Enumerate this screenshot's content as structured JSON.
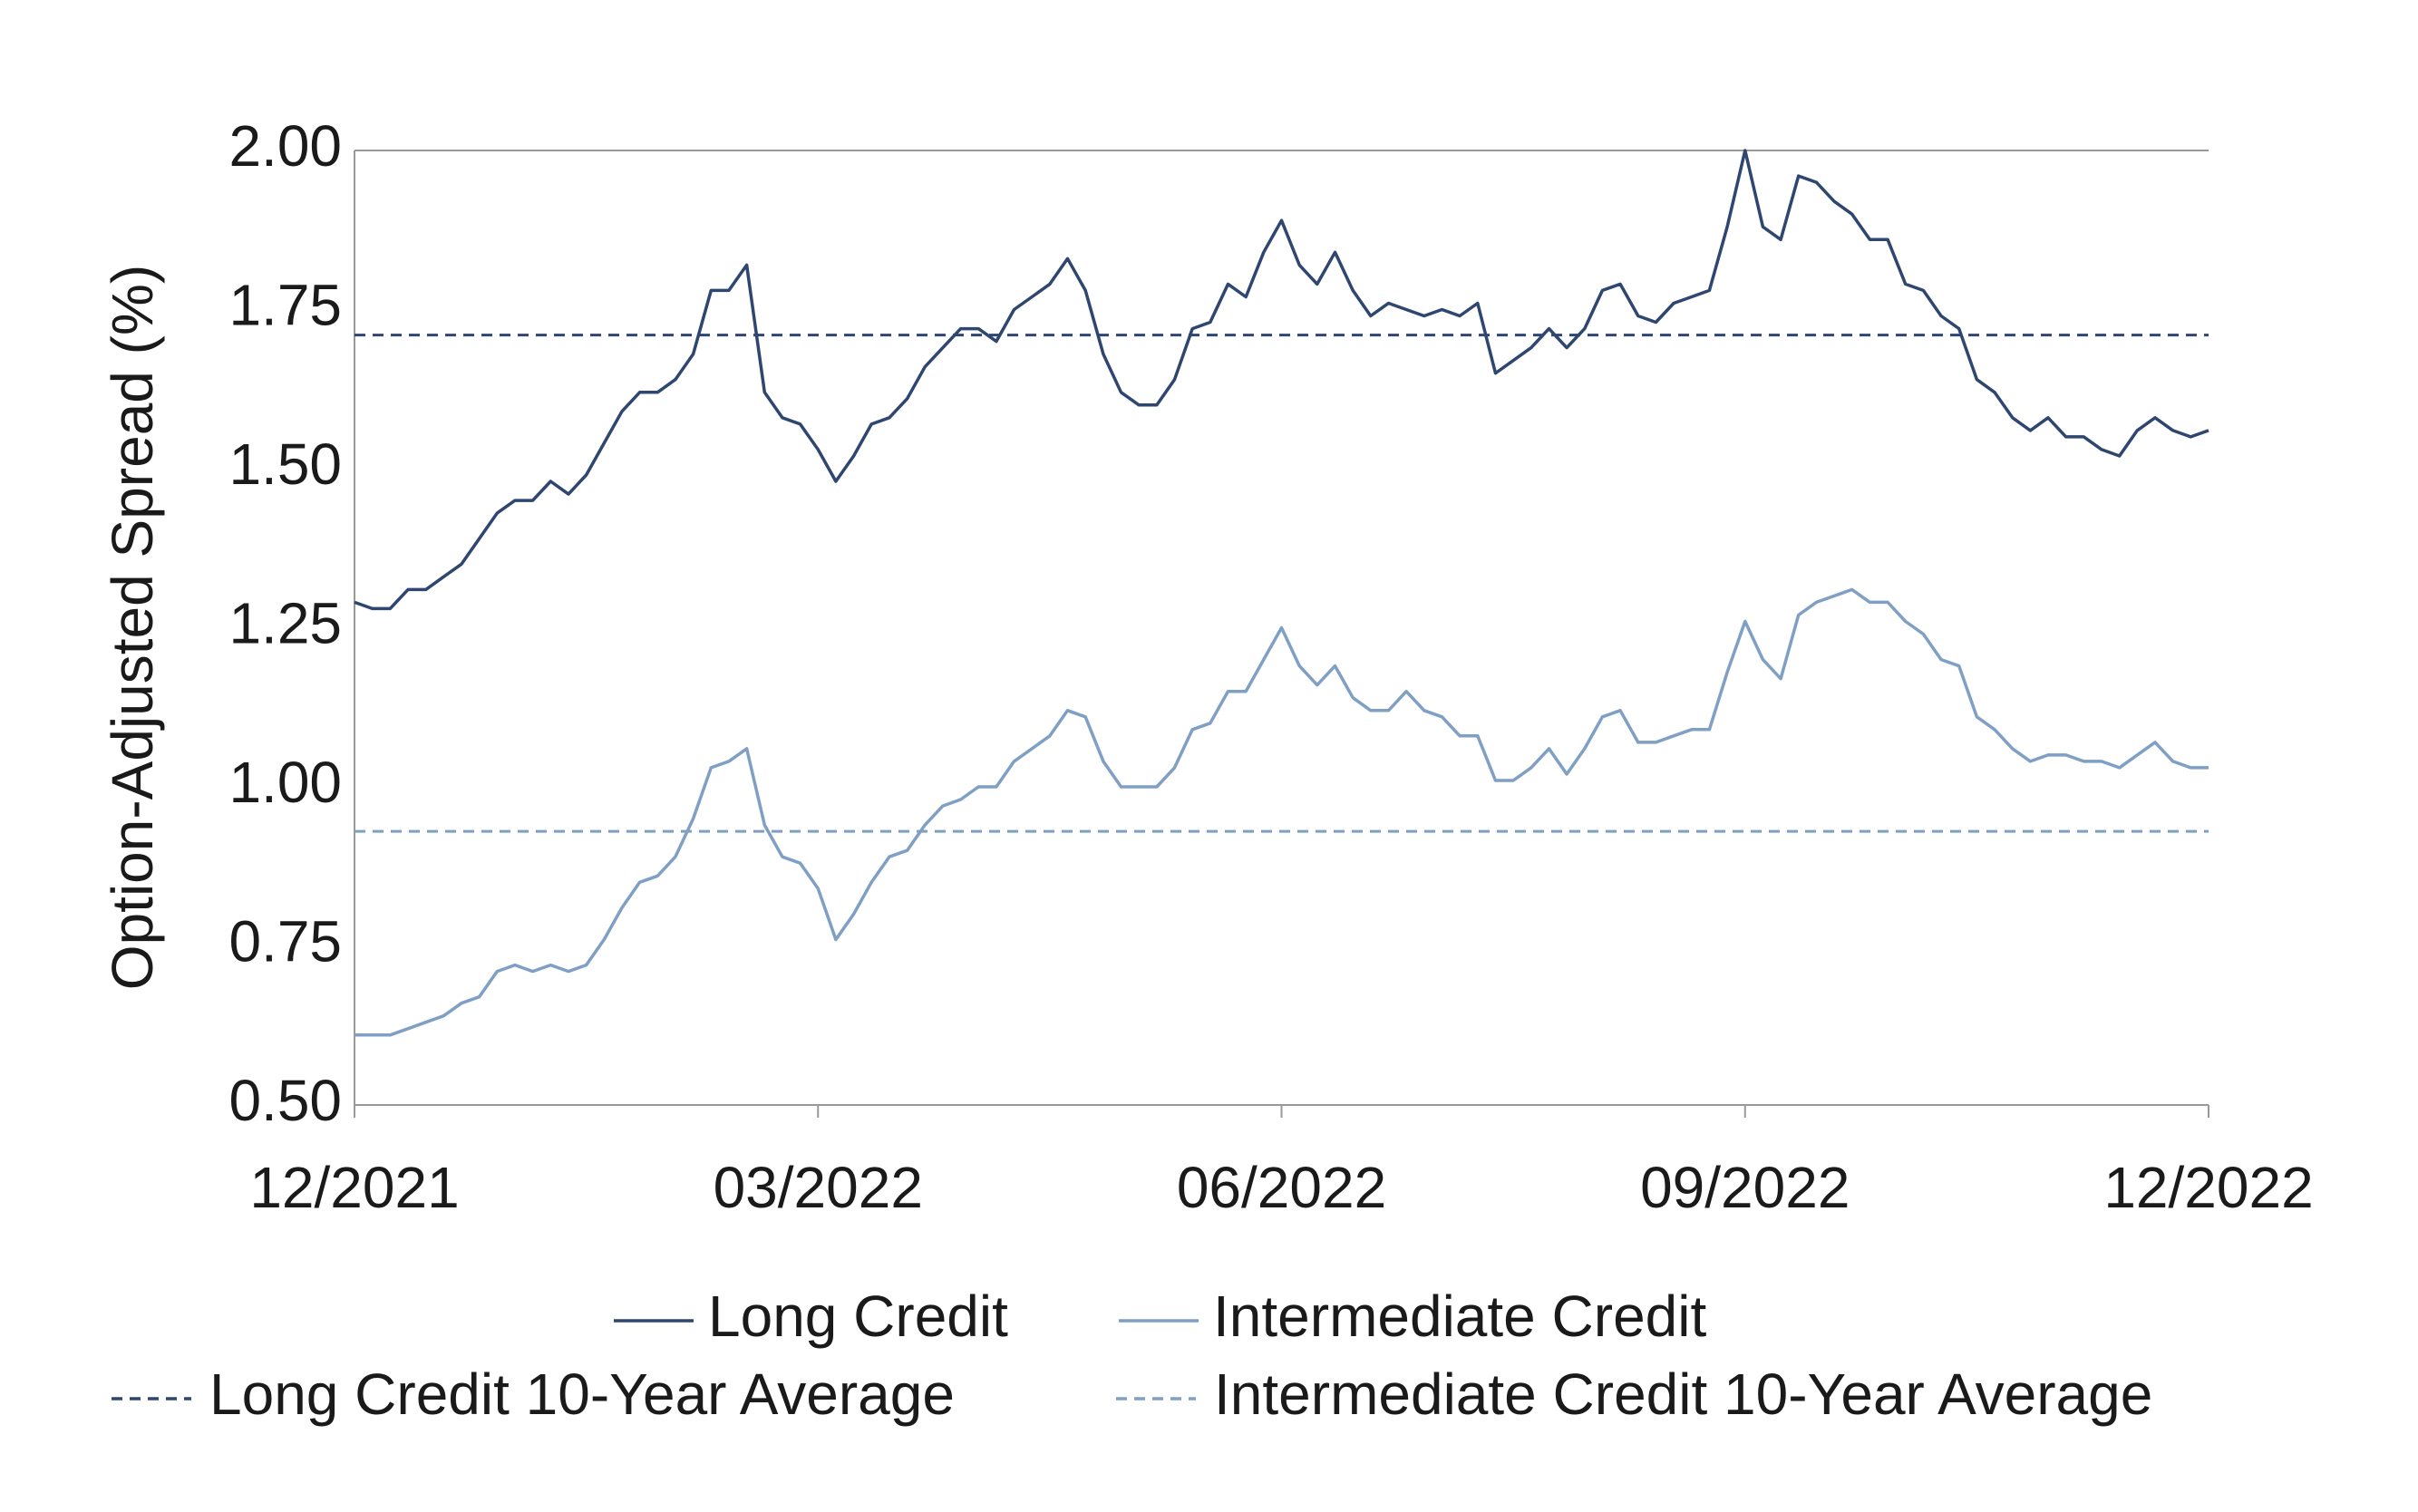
{
  "chart_data": {
    "type": "line",
    "y_label": "Option-Adjusted Spread (%)",
    "categories": [
      "12/2021",
      null,
      null,
      null,
      null,
      null,
      null,
      null,
      null,
      null,
      null,
      null,
      null,
      null,
      null,
      null,
      null,
      null,
      null,
      null,
      null,
      null,
      null,
      null,
      null,
      null,
      "03/2022",
      null,
      null,
      null,
      null,
      null,
      null,
      null,
      null,
      null,
      null,
      null,
      null,
      null,
      null,
      null,
      null,
      null,
      null,
      null,
      null,
      null,
      null,
      null,
      null,
      null,
      "06/2022",
      null,
      null,
      null,
      null,
      null,
      null,
      null,
      null,
      null,
      null,
      null,
      null,
      null,
      null,
      null,
      null,
      null,
      null,
      null,
      null,
      null,
      null,
      null,
      null,
      null,
      "09/2022",
      null,
      null,
      null,
      null,
      null,
      null,
      null,
      null,
      null,
      null,
      null,
      null,
      null,
      null,
      null,
      null,
      null,
      null,
      null,
      null,
      null,
      null,
      null,
      null,
      null,
      "12/2022"
    ],
    "series": [
      {
        "name": "Long Credit",
        "color": "#2e4670",
        "values": [
          1.29,
          1.28,
          1.28,
          1.31,
          1.31,
          1.33,
          1.35,
          1.39,
          1.43,
          1.45,
          1.45,
          1.48,
          1.46,
          1.49,
          1.54,
          1.59,
          1.62,
          1.62,
          1.64,
          1.68,
          1.78,
          1.78,
          1.82,
          1.62,
          1.58,
          1.57,
          1.53,
          1.48,
          1.52,
          1.57,
          1.58,
          1.61,
          1.66,
          1.69,
          1.72,
          1.72,
          1.7,
          1.75,
          1.77,
          1.79,
          1.83,
          1.78,
          1.68,
          1.62,
          1.6,
          1.6,
          1.64,
          1.72,
          1.73,
          1.79,
          1.77,
          1.84,
          1.89,
          1.82,
          1.79,
          1.84,
          1.78,
          1.74,
          1.76,
          1.75,
          1.74,
          1.75,
          1.74,
          1.76,
          1.65,
          1.67,
          1.69,
          1.72,
          1.69,
          1.72,
          1.78,
          1.79,
          1.74,
          1.73,
          1.76,
          1.77,
          1.78,
          1.88,
          2.0,
          1.88,
          1.86,
          1.96,
          1.95,
          1.92,
          1.9,
          1.86,
          1.86,
          1.79,
          1.78,
          1.74,
          1.72,
          1.64,
          1.62,
          1.58,
          1.56,
          1.58,
          1.55,
          1.55,
          1.53,
          1.52,
          1.56,
          1.58,
          1.56,
          1.55,
          1.56
        ]
      },
      {
        "name": "Intermediate Credit",
        "color": "#7f9fc4",
        "values": [
          0.61,
          0.61,
          0.61,
          0.62,
          0.63,
          0.64,
          0.66,
          0.67,
          0.71,
          0.72,
          0.71,
          0.72,
          0.71,
          0.72,
          0.76,
          0.81,
          0.85,
          0.86,
          0.89,
          0.95,
          1.03,
          1.04,
          1.06,
          0.94,
          0.89,
          0.88,
          0.84,
          0.76,
          0.8,
          0.85,
          0.89,
          0.9,
          0.94,
          0.97,
          0.98,
          1.0,
          1.0,
          1.04,
          1.06,
          1.08,
          1.12,
          1.11,
          1.04,
          1.0,
          1.0,
          1.0,
          1.03,
          1.09,
          1.1,
          1.15,
          1.15,
          1.2,
          1.25,
          1.19,
          1.16,
          1.19,
          1.14,
          1.12,
          1.12,
          1.15,
          1.12,
          1.11,
          1.08,
          1.08,
          1.01,
          1.01,
          1.03,
          1.06,
          1.02,
          1.06,
          1.11,
          1.12,
          1.07,
          1.07,
          1.08,
          1.09,
          1.09,
          1.18,
          1.26,
          1.2,
          1.17,
          1.27,
          1.29,
          1.3,
          1.31,
          1.29,
          1.29,
          1.26,
          1.24,
          1.2,
          1.19,
          1.11,
          1.09,
          1.06,
          1.04,
          1.05,
          1.05,
          1.04,
          1.04,
          1.03,
          1.05,
          1.07,
          1.04,
          1.03,
          1.03
        ]
      }
    ],
    "reference_lines": [
      {
        "name": "Long Credit 10-Year Average",
        "value": 1.71,
        "color": "#2e4670",
        "dashed": true
      },
      {
        "name": "Intermediate Credit 10-Year Average",
        "value": 0.93,
        "color": "#7f9fc4",
        "dashed": true
      }
    ],
    "ylim": [
      0.5,
      2.0
    ],
    "yticks": [
      {
        "value": 0.5,
        "label": "0.50"
      },
      {
        "value": 0.75,
        "label": "0.75"
      },
      {
        "value": 1.0,
        "label": "1.00"
      },
      {
        "value": 1.25,
        "label": "1.25"
      },
      {
        "value": 1.5,
        "label": "1.50"
      },
      {
        "value": 1.75,
        "label": "1.75"
      },
      {
        "value": 2.0,
        "label": "2.00"
      }
    ],
    "grid": false
  }
}
